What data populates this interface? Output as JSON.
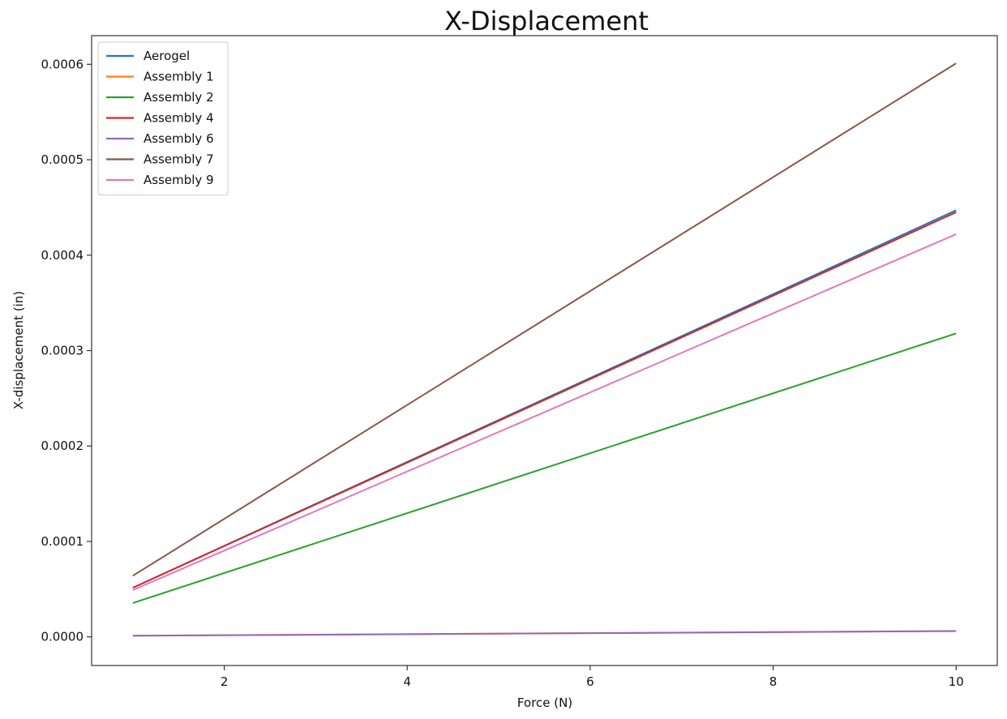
{
  "chart_data": {
    "type": "line",
    "title": "X-Displacement",
    "xlabel": "Force (N)",
    "ylabel": "X-displacement (in)",
    "xlim": [
      0.55,
      10.45
    ],
    "ylim": [
      -3e-05,
      0.00063
    ],
    "x_ticks": [
      {
        "value": 2,
        "label": "2"
      },
      {
        "value": 4,
        "label": "4"
      },
      {
        "value": 6,
        "label": "6"
      },
      {
        "value": 8,
        "label": "8"
      },
      {
        "value": 10,
        "label": "10"
      }
    ],
    "y_ticks": [
      {
        "value": 0.0,
        "label": "0.0000"
      },
      {
        "value": 0.0001,
        "label": "0.0001"
      },
      {
        "value": 0.0002,
        "label": "0.0002"
      },
      {
        "value": 0.0003,
        "label": "0.0003"
      },
      {
        "value": 0.0004,
        "label": "0.0004"
      },
      {
        "value": 0.0005,
        "label": "0.0005"
      },
      {
        "value": 0.0006,
        "label": "0.0006"
      }
    ],
    "grid": false,
    "legend_position": "top-left",
    "x": [
      1,
      10
    ],
    "series": [
      {
        "name": "Aerogel",
        "color": "#1f77b4",
        "values": [
          5.15e-05,
          0.000447
        ]
      },
      {
        "name": "Assembly 1",
        "color": "#ff7f0e",
        "values": [
          1.2e-06,
          6.2e-06
        ]
      },
      {
        "name": "Assembly 2",
        "color": "#2ca02c",
        "values": [
          3.55e-05,
          0.000318
        ]
      },
      {
        "name": "Assembly 4",
        "color": "#d62728",
        "values": [
          5.15e-05,
          0.000445
        ]
      },
      {
        "name": "Assembly 6",
        "color": "#9467bd",
        "values": [
          1.2e-06,
          6e-06
        ]
      },
      {
        "name": "Assembly 7",
        "color": "#8c564b",
        "values": [
          6.4e-05,
          0.000601
        ]
      },
      {
        "name": "Assembly 9",
        "color": "#e377c2",
        "values": [
          4.9e-05,
          0.000422
        ]
      }
    ]
  }
}
